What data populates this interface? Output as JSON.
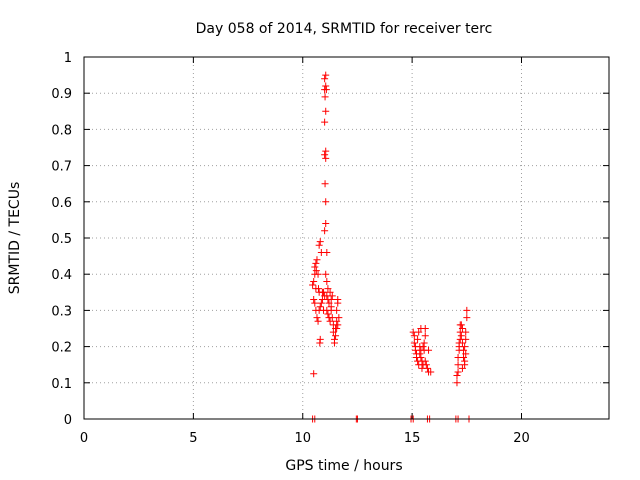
{
  "chart_data": {
    "type": "scatter",
    "title": "Day 058 of 2014, SRMTID for receiver terc",
    "xlabel": "GPS time / hours",
    "ylabel": "SRMTID / TECUs",
    "xlim": [
      0,
      24
    ],
    "ylim": [
      0,
      1
    ],
    "xticks": [
      0,
      5,
      10,
      15,
      20
    ],
    "yticks": [
      0,
      0.1,
      0.2,
      0.3,
      0.4,
      0.5,
      0.6,
      0.7,
      0.8,
      0.9,
      1
    ],
    "xtick_labels": [
      "0",
      "5",
      "10",
      "15",
      "20"
    ],
    "ytick_labels": [
      "0",
      "0.1",
      "0.2",
      "0.3",
      "0.4",
      "0.5",
      "0.6",
      "0.7",
      "0.8",
      "0.9",
      "1"
    ],
    "grid": true,
    "marker": "+",
    "color": "#ff0000",
    "series": [
      {
        "name": "SRMTID",
        "points": [
          [
            10.5,
            0.125
          ],
          [
            10.45,
            0.37
          ],
          [
            10.5,
            0.38
          ],
          [
            10.55,
            0.4
          ],
          [
            10.55,
            0.42
          ],
          [
            10.6,
            0.43
          ],
          [
            10.6,
            0.36
          ],
          [
            10.62,
            0.41
          ],
          [
            10.65,
            0.44
          ],
          [
            10.7,
            0.4
          ],
          [
            10.72,
            0.36
          ],
          [
            10.75,
            0.35
          ],
          [
            10.5,
            0.33
          ],
          [
            10.55,
            0.32
          ],
          [
            10.6,
            0.3
          ],
          [
            10.65,
            0.28
          ],
          [
            10.7,
            0.27
          ],
          [
            10.75,
            0.3
          ],
          [
            10.8,
            0.31
          ],
          [
            10.85,
            0.32
          ],
          [
            10.9,
            0.33
          ],
          [
            10.95,
            0.3
          ],
          [
            10.75,
            0.48
          ],
          [
            10.8,
            0.49
          ],
          [
            10.8,
            0.22
          ],
          [
            10.78,
            0.21
          ],
          [
            10.85,
            0.46
          ],
          [
            10.9,
            0.35
          ],
          [
            10.95,
            0.35
          ],
          [
            11.0,
            0.34
          ],
          [
            11.0,
            0.52
          ],
          [
            11.05,
            0.54
          ],
          [
            11.05,
            0.6
          ],
          [
            11.02,
            0.65
          ],
          [
            11.0,
            0.73
          ],
          [
            11.05,
            0.74
          ],
          [
            11.05,
            0.72
          ],
          [
            11.0,
            0.82
          ],
          [
            11.05,
            0.85
          ],
          [
            11.02,
            0.89
          ],
          [
            11.0,
            0.91
          ],
          [
            11.05,
            0.92
          ],
          [
            11.0,
            0.94
          ],
          [
            11.05,
            0.95
          ],
          [
            11.08,
            0.91
          ],
          [
            11.1,
            0.46
          ],
          [
            11.05,
            0.4
          ],
          [
            11.1,
            0.38
          ],
          [
            11.15,
            0.36
          ],
          [
            11.1,
            0.34
          ],
          [
            11.15,
            0.33
          ],
          [
            11.2,
            0.32
          ],
          [
            11.1,
            0.3
          ],
          [
            11.15,
            0.29
          ],
          [
            11.2,
            0.28
          ],
          [
            11.25,
            0.35
          ],
          [
            11.3,
            0.33
          ],
          [
            11.3,
            0.3
          ],
          [
            11.35,
            0.28
          ],
          [
            11.4,
            0.26
          ],
          [
            11.4,
            0.24
          ],
          [
            11.45,
            0.22
          ],
          [
            11.45,
            0.21
          ],
          [
            11.5,
            0.23
          ],
          [
            11.5,
            0.25
          ],
          [
            11.55,
            0.27
          ],
          [
            11.55,
            0.3
          ],
          [
            11.6,
            0.32
          ],
          [
            11.6,
            0.33
          ],
          [
            11.55,
            0.25
          ],
          [
            11.6,
            0.26
          ],
          [
            11.65,
            0.28
          ],
          [
            11.3,
            0.31
          ],
          [
            11.35,
            0.34
          ],
          [
            11.25,
            0.27
          ],
          [
            15.05,
            0.24
          ],
          [
            15.1,
            0.23
          ],
          [
            15.1,
            0.21
          ],
          [
            15.15,
            0.2
          ],
          [
            15.15,
            0.19
          ],
          [
            15.2,
            0.18
          ],
          [
            15.2,
            0.17
          ],
          [
            15.25,
            0.16
          ],
          [
            15.3,
            0.15
          ],
          [
            15.25,
            0.22
          ],
          [
            15.3,
            0.24
          ],
          [
            15.35,
            0.2
          ],
          [
            15.4,
            0.19
          ],
          [
            15.4,
            0.17
          ],
          [
            15.45,
            0.16
          ],
          [
            15.5,
            0.15
          ],
          [
            15.5,
            0.2
          ],
          [
            15.55,
            0.21
          ],
          [
            15.6,
            0.23
          ],
          [
            15.6,
            0.25
          ],
          [
            15.4,
            0.25
          ],
          [
            15.45,
            0.14
          ],
          [
            15.6,
            0.16
          ],
          [
            15.65,
            0.15
          ],
          [
            15.7,
            0.14
          ],
          [
            15.75,
            0.19
          ],
          [
            15.75,
            0.13
          ],
          [
            15.85,
            0.13
          ],
          [
            15.35,
            0.18
          ],
          [
            15.55,
            0.19
          ],
          [
            17.05,
            0.1
          ],
          [
            17.05,
            0.12
          ],
          [
            17.1,
            0.13
          ],
          [
            17.1,
            0.15
          ],
          [
            17.1,
            0.17
          ],
          [
            17.15,
            0.19
          ],
          [
            17.15,
            0.2
          ],
          [
            17.2,
            0.22
          ],
          [
            17.2,
            0.24
          ],
          [
            17.25,
            0.26
          ],
          [
            17.25,
            0.23
          ],
          [
            17.3,
            0.25
          ],
          [
            17.3,
            0.21
          ],
          [
            17.35,
            0.19
          ],
          [
            17.35,
            0.17
          ],
          [
            17.4,
            0.15
          ],
          [
            17.4,
            0.16
          ],
          [
            17.3,
            0.14
          ],
          [
            17.45,
            0.22
          ],
          [
            17.45,
            0.24
          ],
          [
            17.5,
            0.28
          ],
          [
            17.5,
            0.3
          ],
          [
            17.2,
            0.26
          ],
          [
            17.15,
            0.21
          ],
          [
            17.4,
            0.2
          ],
          [
            17.45,
            0.18
          ],
          [
            10.45,
            0
          ],
          [
            10.55,
            0
          ],
          [
            12.45,
            0
          ],
          [
            12.5,
            0
          ],
          [
            14.95,
            0
          ],
          [
            15.05,
            0
          ],
          [
            15.7,
            0
          ],
          [
            15.8,
            0
          ],
          [
            17.0,
            0
          ],
          [
            17.1,
            0
          ],
          [
            17.6,
            0
          ]
        ]
      }
    ]
  }
}
